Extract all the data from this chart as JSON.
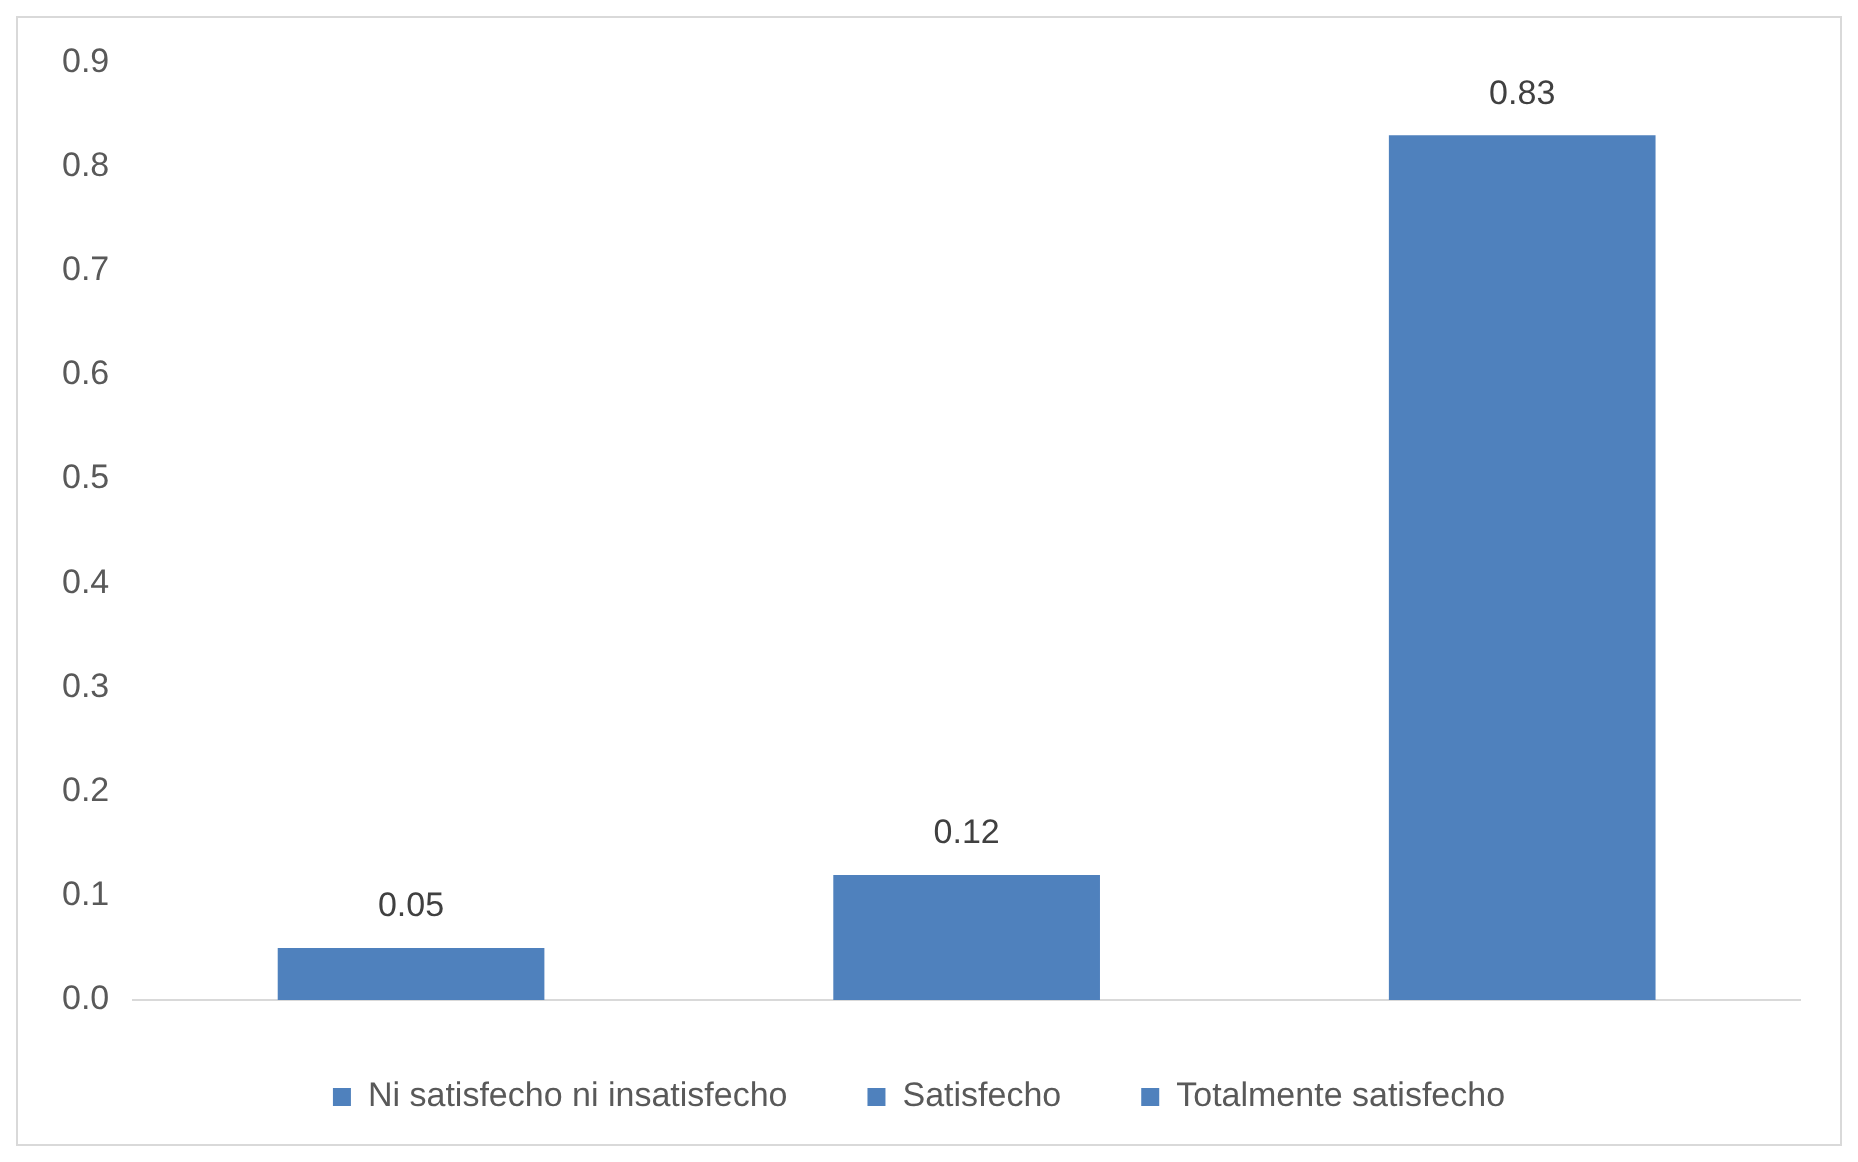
{
  "chart_data": {
    "type": "bar",
    "categories": [
      null,
      null,
      null
    ],
    "series": [
      {
        "name": "Ni satisfecho ni insatisfecho",
        "color": "#4f81bd",
        "values": [
          0.05,
          null,
          null
        ]
      },
      {
        "name": "Satisfecho",
        "color": "#4f81bd",
        "values": [
          null,
          0.12,
          null
        ]
      },
      {
        "name": "Totalmente satisfecho",
        "color": "#4f81bd",
        "values": [
          null,
          null,
          0.83
        ]
      }
    ],
    "ylim": [
      0,
      0.9
    ],
    "yticks": [
      {
        "value": 0,
        "label": "0.0"
      },
      0.1,
      0.2,
      0.3,
      0.4,
      0.5,
      0.6,
      0.7,
      0.8,
      0.9
    ],
    "grid": false,
    "legend": "bottom",
    "data_labels": true
  }
}
